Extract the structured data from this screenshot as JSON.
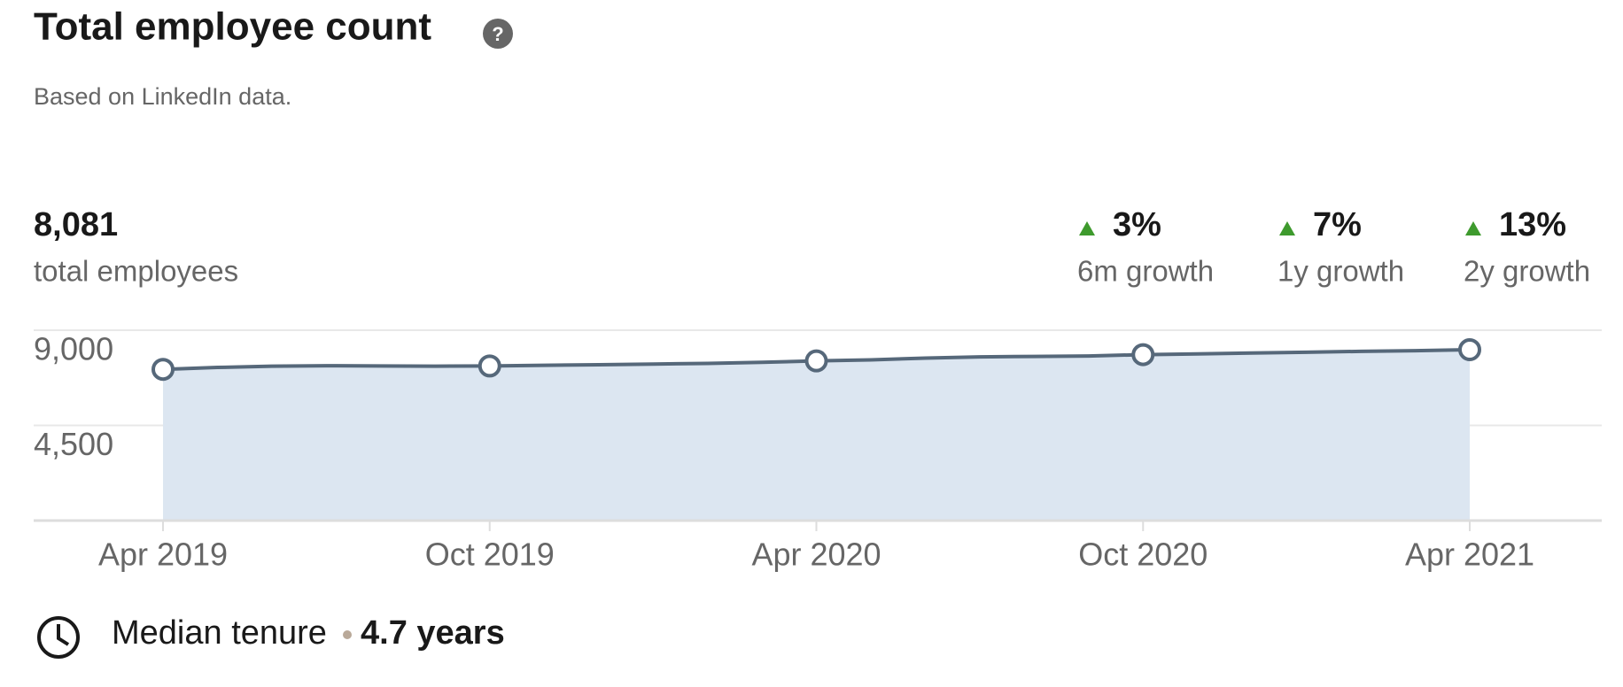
{
  "header": {
    "title": "Total employee count",
    "subtitle": "Based on LinkedIn data."
  },
  "summary": {
    "value": "8,081",
    "label": "total employees"
  },
  "growth": [
    {
      "value": "3%",
      "label": "6m growth"
    },
    {
      "value": "7%",
      "label": "1y growth"
    },
    {
      "value": "13%",
      "label": "2y growth"
    }
  ],
  "tenure": {
    "label": "Median tenure",
    "value": "4.7 years"
  },
  "chart_data": {
    "type": "area",
    "categories": [
      "Apr 2019",
      null,
      null,
      null,
      null,
      null,
      "Oct 2019",
      null,
      null,
      null,
      null,
      null,
      "Apr 2020",
      null,
      null,
      null,
      null,
      null,
      "Oct 2020",
      null,
      null,
      null,
      null,
      null,
      "Apr 2021"
    ],
    "values": [
      7150,
      7240,
      7300,
      7320,
      7310,
      7300,
      7310,
      7340,
      7370,
      7400,
      7430,
      7480,
      7550,
      7600,
      7680,
      7740,
      7760,
      7780,
      7846,
      7880,
      7920,
      7960,
      8000,
      8030,
      8081
    ],
    "color": "#56687a",
    "fill": "#dce6f1",
    "ylim": [
      0,
      9000
    ],
    "yticks": [
      {
        "value": 4500,
        "label": "4,500"
      },
      {
        "value": 9000,
        "label": "9,000"
      }
    ],
    "grid": true
  }
}
